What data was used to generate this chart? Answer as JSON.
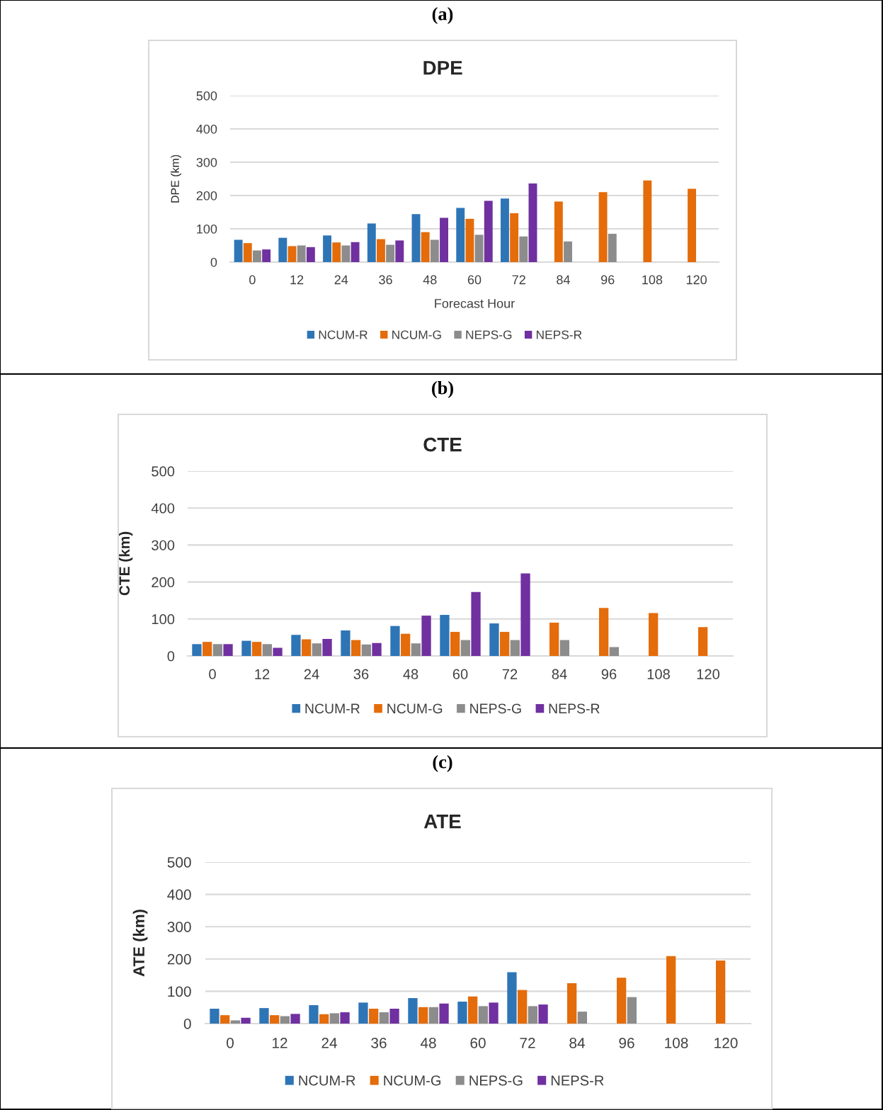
{
  "chart_data": [
    {
      "type": "bar",
      "title": "DPE",
      "ylabel": "DPE (km)",
      "xlabel": "Forecast Hour",
      "annotations": [
        "(a)"
      ],
      "categories": [
        "0",
        "12",
        "24",
        "36",
        "48",
        "60",
        "72",
        "84",
        "96",
        "108",
        "120"
      ],
      "series": [
        {
          "name": "NCUM-R",
          "color": "#2e75b6",
          "values": [
            67,
            73,
            80,
            116,
            144,
            163,
            191,
            null,
            null,
            null,
            null
          ]
        },
        {
          "name": "NCUM-G",
          "color": "#e46c0a",
          "values": [
            57,
            48,
            59,
            69,
            90,
            130,
            147,
            182,
            210,
            245,
            220
          ]
        },
        {
          "name": "NEPS-G",
          "color": "#8c8c8c",
          "values": [
            35,
            50,
            50,
            52,
            67,
            82,
            77,
            62,
            85,
            null,
            null
          ]
        },
        {
          "name": "NEPS-R",
          "color": "#7030a0",
          "values": [
            38,
            45,
            60,
            65,
            133,
            184,
            236,
            null,
            null,
            null,
            null
          ]
        }
      ],
      "ylim": [
        0,
        500
      ],
      "yticks": [
        0,
        100,
        200,
        300,
        400,
        500
      ],
      "grid": "y",
      "legend": "bottom"
    },
    {
      "type": "bar",
      "title": "CTE",
      "ylabel": "CTE (km)",
      "annotations": [
        "(b)"
      ],
      "categories": [
        "0",
        "12",
        "24",
        "36",
        "48",
        "60",
        "72",
        "84",
        "96",
        "108",
        "120"
      ],
      "series": [
        {
          "name": "NCUM-R",
          "color": "#2e75b6",
          "values": [
            32,
            41,
            57,
            69,
            81,
            111,
            88,
            null,
            null,
            null,
            null
          ]
        },
        {
          "name": "NCUM-G",
          "color": "#e46c0a",
          "values": [
            38,
            38,
            45,
            43,
            60,
            65,
            65,
            90,
            130,
            116,
            78
          ]
        },
        {
          "name": "NEPS-G",
          "color": "#8c8c8c",
          "values": [
            32,
            32,
            34,
            31,
            34,
            43,
            43,
            43,
            24,
            null,
            null
          ]
        },
        {
          "name": "NEPS-R",
          "color": "#7030a0",
          "values": [
            32,
            22,
            46,
            35,
            109,
            173,
            223,
            null,
            null,
            null,
            null
          ]
        }
      ],
      "ylim": [
        0,
        500
      ],
      "yticks": [
        0,
        100,
        200,
        300,
        400,
        500
      ],
      "grid": "y",
      "legend": "bottom"
    },
    {
      "type": "bar",
      "title": "ATE",
      "ylabel": "ATE (km)",
      "annotations": [
        "(c)"
      ],
      "categories": [
        "0",
        "12",
        "24",
        "36",
        "48",
        "60",
        "72",
        "84",
        "96",
        "108",
        "120"
      ],
      "series": [
        {
          "name": "NCUM-R",
          "color": "#2e75b6",
          "values": [
            46,
            48,
            57,
            65,
            79,
            68,
            159,
            null,
            null,
            null,
            null
          ]
        },
        {
          "name": "NCUM-G",
          "color": "#e46c0a",
          "values": [
            26,
            26,
            29,
            46,
            51,
            84,
            104,
            125,
            142,
            209,
            195
          ]
        },
        {
          "name": "NEPS-G",
          "color": "#8c8c8c",
          "values": [
            10,
            23,
            32,
            35,
            51,
            54,
            54,
            37,
            82,
            null,
            null
          ]
        },
        {
          "name": "NEPS-R",
          "color": "#7030a0",
          "values": [
            18,
            30,
            35,
            46,
            62,
            65,
            59,
            null,
            null,
            null,
            null
          ]
        }
      ],
      "ylim": [
        0,
        500
      ],
      "yticks": [
        0,
        100,
        200,
        300,
        400,
        500
      ],
      "grid": "y",
      "legend": "bottom"
    }
  ]
}
